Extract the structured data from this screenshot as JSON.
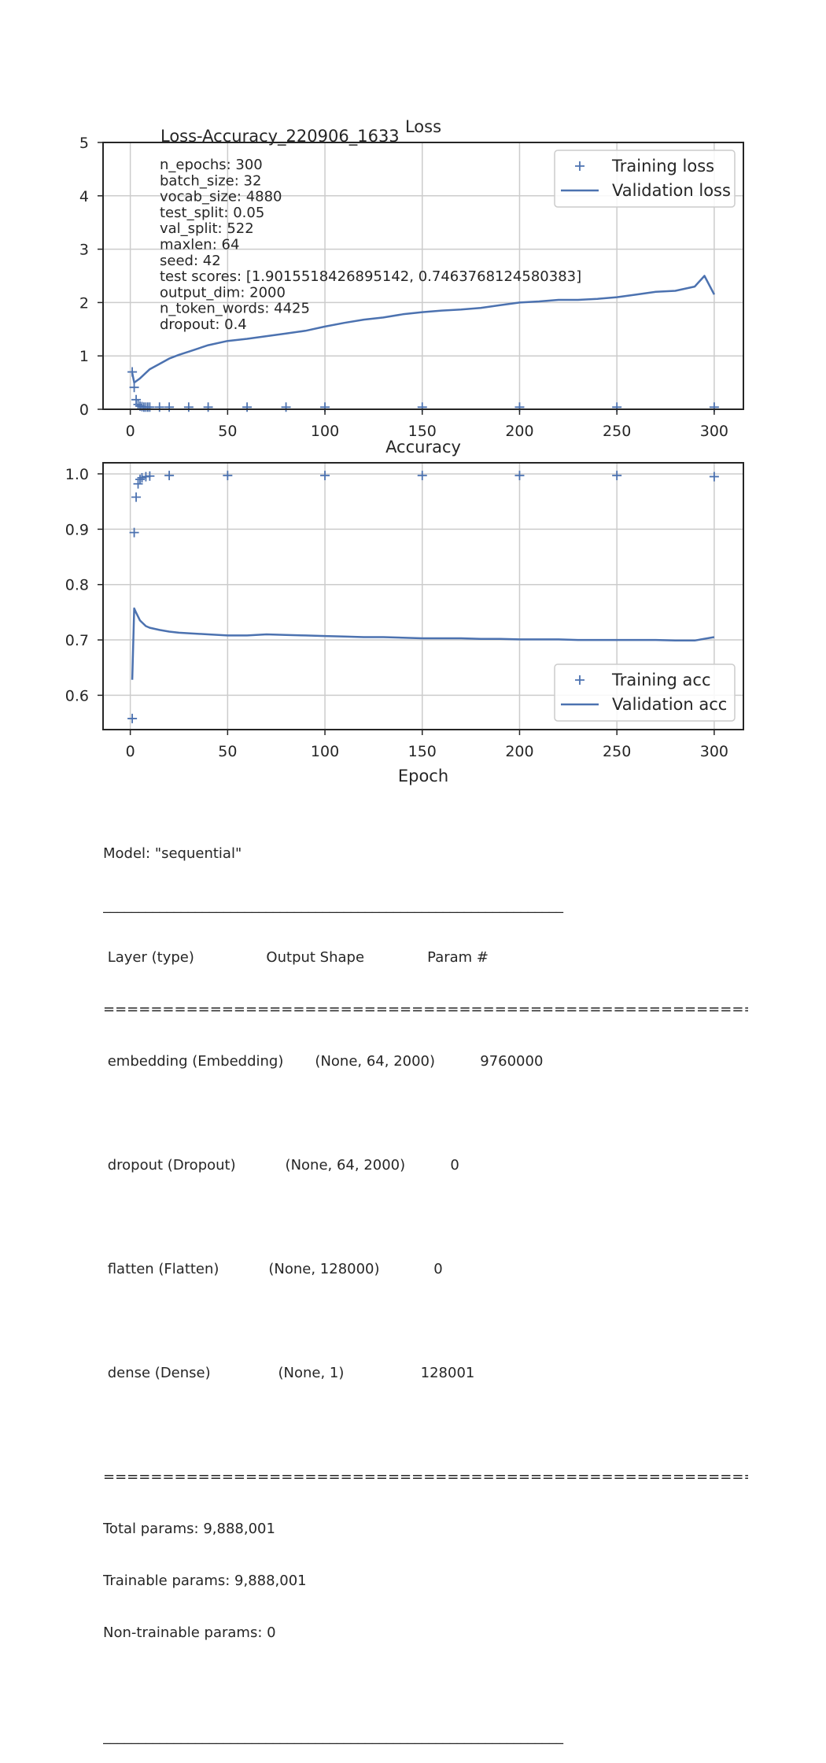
{
  "figure_title": "Loss-Accuracy_220906_1633",
  "info_lines": [
    "n_epochs: 300",
    "batch_size: 32",
    "vocab_size: 4880",
    "test_split: 0.05",
    "val_split: 522",
    "maxlen: 64",
    "seed: 42",
    "test scores: [1.9015518426895142, 0.7463768124580383]",
    "output_dim: 2000",
    "n_token_words: 4425",
    "dropout: 0.4"
  ],
  "colors": {
    "series": "#4c72b0",
    "grid": "#cccccc",
    "frame": "#262626"
  },
  "chart_data": [
    {
      "type": "line",
      "title": "Loss",
      "xlabel": "",
      "ylabel": "",
      "xlim": [
        -14,
        315
      ],
      "ylim": [
        0,
        5
      ],
      "xticks": [
        0,
        50,
        100,
        150,
        200,
        250,
        300
      ],
      "yticks": [
        0,
        1,
        2,
        3,
        4,
        5
      ],
      "grid": true,
      "legend_position": "top-right",
      "series": [
        {
          "name": "Training loss",
          "marker": "+",
          "line": false,
          "x": [
            1,
            2,
            3,
            4,
            5,
            6,
            7,
            8,
            9,
            10,
            15,
            20,
            30,
            40,
            60,
            80,
            100,
            150,
            200,
            250,
            300
          ],
          "y": [
            0.7,
            0.41,
            0.18,
            0.09,
            0.06,
            0.05,
            0.04,
            0.04,
            0.04,
            0.04,
            0.04,
            0.04,
            0.04,
            0.04,
            0.04,
            0.04,
            0.04,
            0.04,
            0.04,
            0.04,
            0.04
          ]
        },
        {
          "name": "Validation loss",
          "marker": "",
          "line": true,
          "x": [
            1,
            2,
            5,
            10,
            15,
            20,
            25,
            30,
            40,
            50,
            60,
            70,
            80,
            90,
            100,
            110,
            120,
            130,
            140,
            150,
            160,
            170,
            180,
            190,
            200,
            210,
            220,
            230,
            240,
            250,
            260,
            270,
            280,
            290,
            295,
            300
          ],
          "y": [
            0.68,
            0.5,
            0.58,
            0.75,
            0.85,
            0.95,
            1.02,
            1.08,
            1.2,
            1.28,
            1.32,
            1.37,
            1.42,
            1.47,
            1.55,
            1.62,
            1.68,
            1.72,
            1.78,
            1.82,
            1.85,
            1.87,
            1.9,
            1.95,
            2.0,
            2.02,
            2.05,
            2.05,
            2.07,
            2.1,
            2.15,
            2.2,
            2.22,
            2.3,
            2.5,
            2.15
          ]
        }
      ]
    },
    {
      "type": "line",
      "title": "Accuracy",
      "xlabel": "Epoch",
      "ylabel": "",
      "xlim": [
        -14,
        315
      ],
      "ylim": [
        0.538,
        1.02
      ],
      "xticks": [
        0,
        50,
        100,
        150,
        200,
        250,
        300
      ],
      "yticks": [
        0.6,
        0.7,
        0.8,
        0.9,
        1.0
      ],
      "yticklabels": [
        "0.6",
        "0.7",
        "0.8",
        "0.9",
        "1.0"
      ],
      "grid": true,
      "legend_position": "lower-right",
      "series": [
        {
          "name": "Training acc",
          "marker": "+",
          "line": false,
          "x": [
            1,
            2,
            3,
            4,
            5,
            6,
            8,
            10,
            20,
            50,
            100,
            150,
            200,
            250,
            300
          ],
          "y": [
            0.558,
            0.894,
            0.958,
            0.982,
            0.99,
            0.993,
            0.995,
            0.996,
            0.997,
            0.997,
            0.997,
            0.997,
            0.997,
            0.997,
            0.995
          ]
        },
        {
          "name": "Validation acc",
          "marker": "",
          "line": true,
          "x": [
            1,
            2,
            3,
            5,
            8,
            10,
            15,
            20,
            25,
            30,
            40,
            50,
            60,
            70,
            80,
            90,
            100,
            110,
            120,
            130,
            140,
            150,
            160,
            170,
            180,
            190,
            200,
            210,
            220,
            230,
            240,
            250,
            260,
            270,
            280,
            290,
            300
          ],
          "y": [
            0.628,
            0.757,
            0.749,
            0.735,
            0.725,
            0.722,
            0.718,
            0.715,
            0.713,
            0.712,
            0.71,
            0.708,
            0.708,
            0.71,
            0.709,
            0.708,
            0.707,
            0.706,
            0.705,
            0.705,
            0.704,
            0.703,
            0.703,
            0.703,
            0.702,
            0.702,
            0.701,
            0.701,
            0.701,
            0.7,
            0.7,
            0.7,
            0.7,
            0.7,
            0.699,
            0.699,
            0.705
          ]
        }
      ]
    }
  ],
  "model_summary": {
    "model_line": "Model: \"sequential\"",
    "rule_line": "_________________________________________________________________",
    "header_line": " Layer (type)                Output Shape              Param #   ",
    "eq_line": "=================================================================",
    "layers": [
      " embedding (Embedding)       (None, 64, 2000)          9760000   ",
      " dropout (Dropout)           (None, 64, 2000)          0         ",
      " flatten (Flatten)           (None, 128000)            0         ",
      " dense (Dense)               (None, 1)                 128001    "
    ],
    "totals": [
      "Total params: 9,888,001",
      "Trainable params: 9,888,001",
      "Non-trainable params: 0"
    ]
  }
}
